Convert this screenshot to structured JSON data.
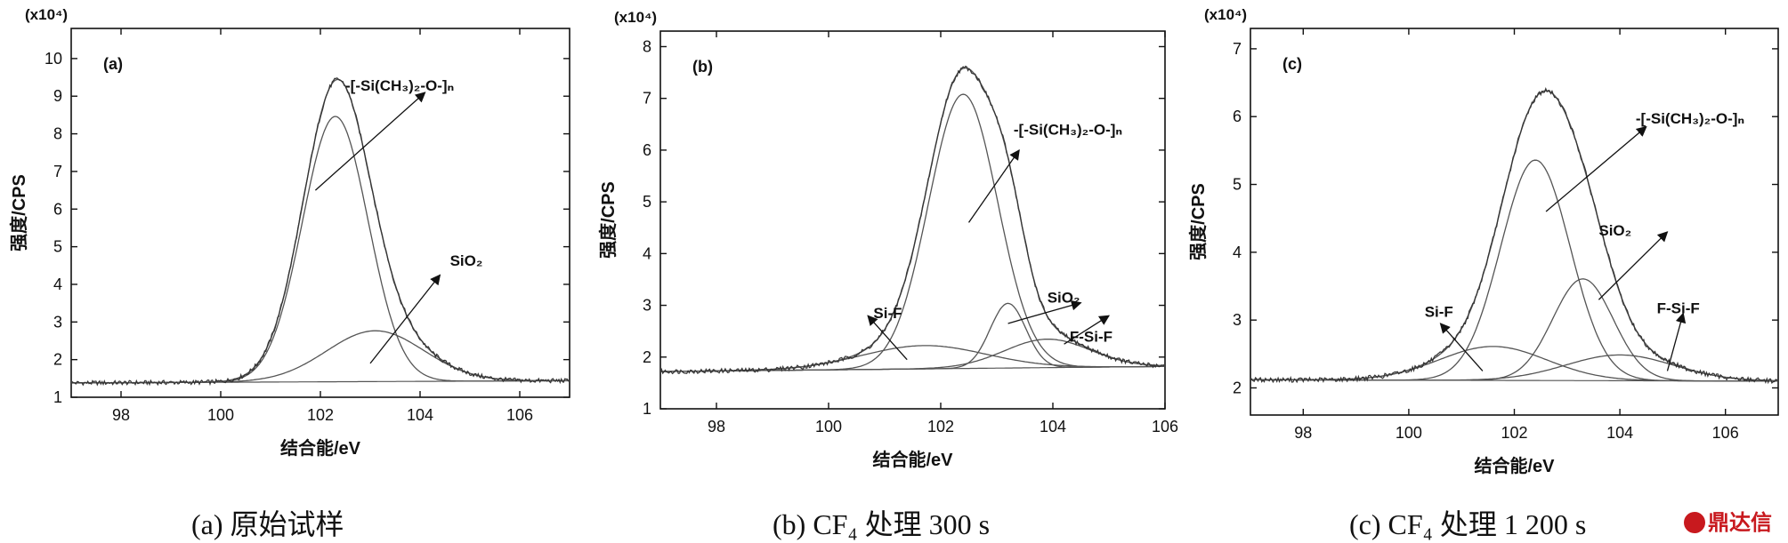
{
  "captions": [
    "(a) 原始试样",
    "(b) CF₄ 处理 300 s",
    "(c) CF₄ 处理 1 200 s"
  ],
  "logo_text": "鼎达信",
  "colors": {
    "axes": "#111111",
    "fit": "#555555",
    "experimental": "#333333"
  },
  "chart_data": [
    {
      "type": "line",
      "panel_label": "(a)",
      "xlabel": "结合能/eV",
      "ylabel": "强度/CPS",
      "y_multiplier": "(x10⁴)",
      "xlim": [
        97,
        107
      ],
      "ylim": [
        1,
        10.8
      ],
      "xticks": [
        98,
        100,
        102,
        104,
        106
      ],
      "yticks": [
        1,
        2,
        3,
        4,
        5,
        6,
        7,
        8,
        9,
        10
      ],
      "grid": false,
      "baseline": {
        "start": 1.38,
        "slope": 0.006
      },
      "components": [
        {
          "label": "-[-Si(CH₃)₂-O-]ₙ",
          "center": 102.3,
          "fwhm": 1.55,
          "height": 7.05
        },
        {
          "label": "SiO₂",
          "center": 103.1,
          "fwhm": 2.3,
          "height": 1.35
        }
      ],
      "annotations": [
        {
          "text": "-[-Si(CH₃)₂-O-]ₙ",
          "at": [
            102.5,
            9.15
          ],
          "arrow_from": [
            101.9,
            6.5
          ],
          "arrow_to": [
            104.1,
            9.1
          ]
        },
        {
          "text": "SiO₂",
          "at": [
            104.6,
            4.5
          ],
          "arrow_from": [
            103.0,
            1.9
          ],
          "arrow_to": [
            104.4,
            4.25
          ]
        }
      ]
    },
    {
      "type": "line",
      "panel_label": "(b)",
      "xlabel": "结合能/eV",
      "ylabel": "强度/CPS",
      "y_multiplier": "(x10⁴)",
      "xlim": [
        97,
        106
      ],
      "ylim": [
        1,
        8.3
      ],
      "xticks": [
        98,
        100,
        102,
        104,
        106
      ],
      "yticks": [
        1,
        2,
        3,
        4,
        5,
        6,
        7,
        8
      ],
      "grid": false,
      "baseline": {
        "start": 1.72,
        "slope": 0.011
      },
      "components": [
        {
          "label": "-[-Si(CH₃)₂-O-]ₙ",
          "center": 102.4,
          "fwhm": 1.45,
          "height": 5.3
        },
        {
          "label": "SiO₂",
          "center": 103.2,
          "fwhm": 0.75,
          "height": 1.25
        },
        {
          "label": "Si-F",
          "center": 101.7,
          "fwhm": 2.6,
          "height": 0.45
        },
        {
          "label": "F-Si-F",
          "center": 103.9,
          "fwhm": 1.8,
          "height": 0.55
        }
      ],
      "annotations": [
        {
          "text": "-[-Si(CH₃)₂-O-]ₙ",
          "at": [
            103.3,
            6.3
          ],
          "arrow_from": [
            102.5,
            4.6
          ],
          "arrow_to": [
            103.4,
            6.0
          ]
        },
        {
          "text": "SiO₂",
          "at": [
            103.9,
            3.05
          ],
          "arrow_from": [
            103.2,
            2.65
          ],
          "arrow_to": [
            104.5,
            3.05
          ]
        },
        {
          "text": "F-Si-F",
          "at": [
            104.3,
            2.3
          ],
          "arrow_from": [
            104.2,
            2.25
          ],
          "arrow_to": [
            105.0,
            2.8
          ]
        },
        {
          "text": "Si-F",
          "at": [
            100.8,
            2.75
          ],
          "arrow_from": [
            101.4,
            1.95
          ],
          "arrow_to": [
            100.7,
            2.8
          ]
        }
      ]
    },
    {
      "type": "line",
      "panel_label": "(c)",
      "xlabel": "结合能/eV",
      "ylabel": "强度/CPS",
      "y_multiplier": "(x10⁴)",
      "xlim": [
        97,
        107
      ],
      "ylim": [
        1.6,
        7.3
      ],
      "xticks": [
        98,
        100,
        102,
        104,
        106
      ],
      "yticks": [
        2,
        3,
        4,
        5,
        6,
        7
      ],
      "grid": false,
      "baseline": {
        "start": 2.12,
        "slope": -0.002
      },
      "components": [
        {
          "label": "-[-Si(CH₃)₂-O-]ₙ",
          "center": 102.4,
          "fwhm": 1.55,
          "height": 3.25
        },
        {
          "label": "SiO₂",
          "center": 103.3,
          "fwhm": 1.35,
          "height": 1.5
        },
        {
          "label": "Si-F",
          "center": 101.6,
          "fwhm": 2.4,
          "height": 0.5
        },
        {
          "label": "F-Si-F",
          "center": 104.0,
          "fwhm": 2.4,
          "height": 0.38
        }
      ],
      "annotations": [
        {
          "text": "-[-Si(CH₃)₂-O-]ₙ",
          "at": [
            104.3,
            5.9
          ],
          "arrow_from": [
            102.6,
            4.6
          ],
          "arrow_to": [
            104.5,
            5.85
          ]
        },
        {
          "text": "SiO₂",
          "at": [
            103.6,
            4.25
          ],
          "arrow_from": [
            103.6,
            3.3
          ],
          "arrow_to": [
            104.9,
            4.3
          ]
        },
        {
          "text": "F-Si-F",
          "at": [
            104.7,
            3.1
          ],
          "arrow_from": [
            104.9,
            2.25
          ],
          "arrow_to": [
            105.2,
            3.1
          ]
        },
        {
          "text": "Si-F",
          "at": [
            100.3,
            3.05
          ],
          "arrow_from": [
            101.4,
            2.25
          ],
          "arrow_to": [
            100.6,
            2.95
          ]
        }
      ]
    }
  ]
}
